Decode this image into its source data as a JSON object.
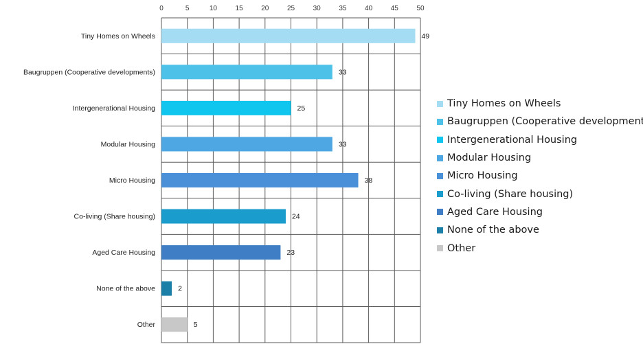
{
  "chart_data": {
    "type": "bar",
    "orientation": "horizontal",
    "title": "",
    "xlabel": "",
    "ylabel": "",
    "xlim": [
      0,
      50
    ],
    "x_ticks": [
      "0",
      "5",
      "10",
      "15",
      "20",
      "25",
      "30",
      "35",
      "40",
      "45",
      "50"
    ],
    "x_axis_position": "top",
    "grid": true,
    "legend_position": "right",
    "categories": [
      "Tiny Homes on Wheels",
      "Baugruppen (Cooperative developments)",
      "Intergenerational Housing",
      "Modular Housing",
      "Micro Housing",
      "Co-living (Share housing)",
      "Aged Care Housing",
      "None of the above",
      "Other"
    ],
    "values": [
      49,
      33,
      25,
      33,
      38,
      24,
      23,
      2,
      5
    ],
    "data_labels": [
      "49",
      "33",
      "25",
      "33",
      "38",
      "24",
      "23",
      "2",
      "5"
    ],
    "colors": [
      "#a3dcf3",
      "#4ec1e8",
      "#10c5ee",
      "#4ea7e2",
      "#4a90d9",
      "#1a9dcc",
      "#3f7ec4",
      "#1b7fa8",
      "#c8c8c8"
    ],
    "legend": [
      "Tiny Homes on Wheels",
      "Baugruppen (Cooperative developments)",
      "Intergenerational Housing",
      "Modular Housing",
      "Micro Housing",
      "Co-living (Share housing)",
      "Aged Care Housing",
      "None of the above",
      "Other"
    ]
  }
}
